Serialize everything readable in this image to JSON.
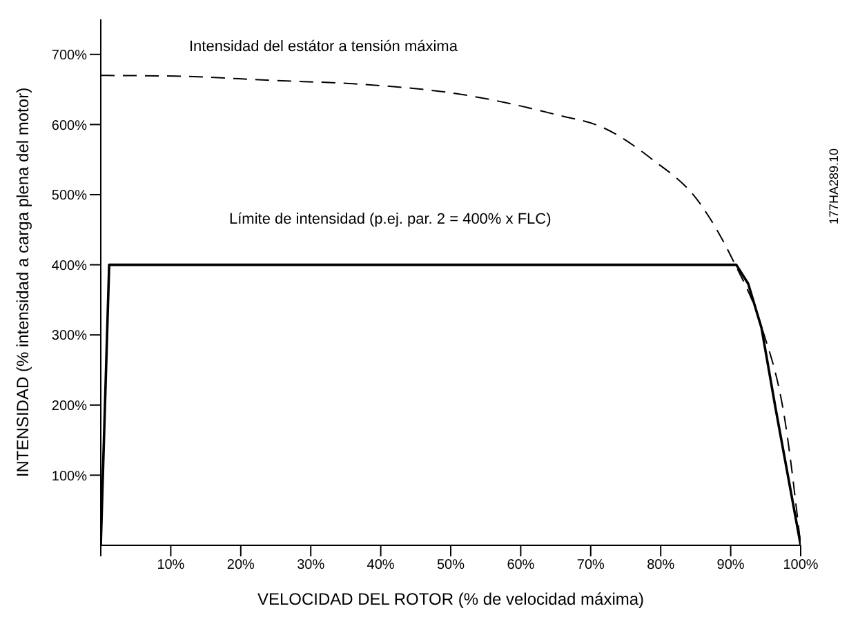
{
  "chart_data": {
    "type": "line",
    "xlabel": "VELOCIDAD DEL ROTOR (% de velocidad máxima)",
    "ylabel": "INTENSIDAD (% intensidad a carga plena del motor)",
    "xlim": [
      0,
      100
    ],
    "ylim": [
      0,
      750
    ],
    "xticks": [
      {
        "value": 0,
        "label": null
      },
      {
        "value": 10,
        "label": "10%"
      },
      {
        "value": 20,
        "label": "20%"
      },
      {
        "value": 30,
        "label": "30%"
      },
      {
        "value": 40,
        "label": "40%"
      },
      {
        "value": 50,
        "label": "50%"
      },
      {
        "value": 60,
        "label": "60%"
      },
      {
        "value": 70,
        "label": "70%"
      },
      {
        "value": 80,
        "label": "80%"
      },
      {
        "value": 90,
        "label": "90%"
      },
      {
        "value": 100,
        "label": "100%"
      }
    ],
    "yticks": [
      {
        "value": 100,
        "label": "100%"
      },
      {
        "value": 200,
        "label": "200%"
      },
      {
        "value": 300,
        "label": "300%"
      },
      {
        "value": 400,
        "label": "400%"
      },
      {
        "value": 500,
        "label": "500%"
      },
      {
        "value": 600,
        "label": "600%"
      },
      {
        "value": 700,
        "label": "700%"
      }
    ],
    "grid": false,
    "marker": "none",
    "series": [
      {
        "type": "line",
        "color": "#000000",
        "line_style": "dashed",
        "x": [
          0,
          10.7,
          24.3,
          37.9,
          51.5,
          65.1,
          71.9,
          78.7,
          85.5,
          90.3,
          94.4,
          97.8,
          100
        ],
        "values": [
          670,
          669,
          663,
          657,
          643,
          614,
          595,
          551,
          489,
          407,
          312,
          175,
          0
        ]
      },
      {
        "type": "line",
        "color": "#000000",
        "line_style": "solid",
        "x": [
          0,
          1.2,
          90.8,
          92.5,
          94.4,
          96.4,
          100
        ],
        "values": [
          0,
          400,
          400,
          373,
          310,
          196,
          0
        ]
      }
    ],
    "annotations": [
      "Intensidad del estátor a tensión máxima",
      "Límite de intensidad (p.ej. par. 2 = 400% x FLC)",
      "177HA289.10"
    ]
  }
}
